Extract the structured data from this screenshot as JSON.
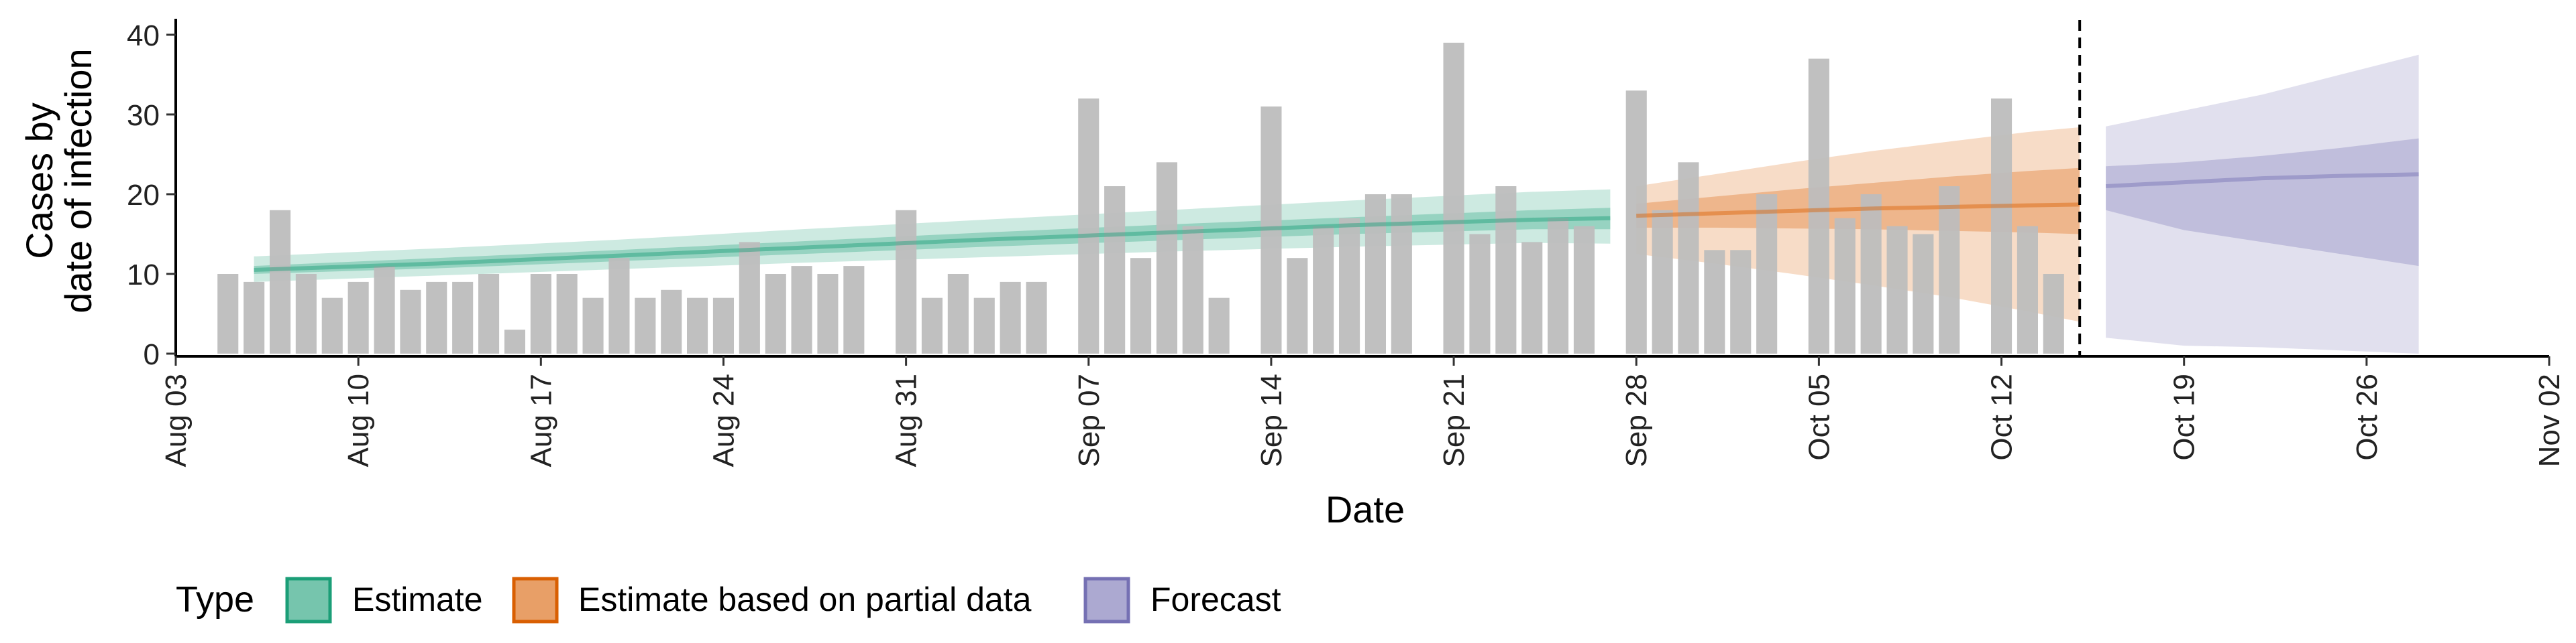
{
  "chart_data": {
    "type": "bar",
    "xlabel": "Date",
    "ylabel_lines": [
      "Cases by",
      "date of infection"
    ],
    "ylim": [
      0,
      41
    ],
    "y_ticks": [
      0,
      10,
      20,
      30,
      40
    ],
    "x_range": [
      "2020-08-03",
      "2020-11-02"
    ],
    "x_ticks": [
      {
        "date": "2020-08-03",
        "label": "Aug 03"
      },
      {
        "date": "2020-08-10",
        "label": "Aug 10"
      },
      {
        "date": "2020-08-17",
        "label": "Aug 17"
      },
      {
        "date": "2020-08-24",
        "label": "Aug 24"
      },
      {
        "date": "2020-08-31",
        "label": "Aug 31"
      },
      {
        "date": "2020-09-07",
        "label": "Sep 07"
      },
      {
        "date": "2020-09-14",
        "label": "Sep 14"
      },
      {
        "date": "2020-09-21",
        "label": "Sep 21"
      },
      {
        "date": "2020-09-28",
        "label": "Sep 28"
      },
      {
        "date": "2020-10-05",
        "label": "Oct 05"
      },
      {
        "date": "2020-10-12",
        "label": "Oct 12"
      },
      {
        "date": "2020-10-19",
        "label": "Oct 19"
      },
      {
        "date": "2020-10-26",
        "label": "Oct 26"
      },
      {
        "date": "2020-11-02",
        "label": "Nov 02"
      }
    ],
    "bars": {
      "start_date": "2020-08-05",
      "values": [
        10,
        9,
        18,
        10,
        7,
        9,
        11,
        8,
        9,
        9,
        10,
        3,
        10,
        10,
        7,
        12,
        7,
        8,
        7,
        7,
        14,
        10,
        11,
        10,
        11,
        null,
        18,
        7,
        10,
        7,
        9,
        9,
        null,
        32,
        21,
        12,
        24,
        16,
        7,
        null,
        31,
        12,
        16,
        17,
        20,
        20,
        null,
        39,
        15,
        21,
        14,
        17,
        16,
        null,
        33,
        18,
        24,
        13,
        13,
        20,
        null,
        37,
        17,
        20,
        16,
        15,
        21,
        null,
        32,
        16,
        10
      ]
    },
    "vline_date": "2020-10-15",
    "series": [
      {
        "name": "Estimate",
        "color": "#1b9e77",
        "x": [
          "2020-08-06",
          "2020-08-13",
          "2020-08-20",
          "2020-08-27",
          "2020-09-03",
          "2020-09-10",
          "2020-09-17",
          "2020-09-24",
          "2020-09-27"
        ],
        "median": [
          10.5,
          11.3,
          12.3,
          13.3,
          14.3,
          15.2,
          16.1,
          16.8,
          17.0
        ],
        "inner_low": [
          10.0,
          10.7,
          11.6,
          12.5,
          13.4,
          14.2,
          15.0,
          15.6,
          15.6
        ],
        "inner_high": [
          11.0,
          12.0,
          13.0,
          14.1,
          15.2,
          16.2,
          17.1,
          18.0,
          18.3
        ],
        "outer_low": [
          9.0,
          9.8,
          10.6,
          11.4,
          12.1,
          12.8,
          13.4,
          13.9,
          13.8
        ],
        "outer_high": [
          12.2,
          13.2,
          14.3,
          15.6,
          16.8,
          18.0,
          19.2,
          20.3,
          20.6
        ]
      },
      {
        "name": "Estimate based on partial data",
        "color": "#d95f02",
        "x": [
          "2020-09-28",
          "2020-10-01",
          "2020-10-04",
          "2020-10-07",
          "2020-10-10",
          "2020-10-13",
          "2020-10-15"
        ],
        "median": [
          17.3,
          17.6,
          17.9,
          18.2,
          18.4,
          18.6,
          18.7
        ],
        "inner_low": [
          15.8,
          15.8,
          15.7,
          15.6,
          15.4,
          15.2,
          15.0
        ],
        "inner_high": [
          18.8,
          19.7,
          20.6,
          21.4,
          22.2,
          22.9,
          23.3
        ],
        "outer_low": [
          12.5,
          11.3,
          10.0,
          8.6,
          7.1,
          5.3,
          4.0
        ],
        "outer_high": [
          21.0,
          22.5,
          24.0,
          25.4,
          26.6,
          27.8,
          28.4
        ]
      },
      {
        "name": "Forecast",
        "color": "#7570b3",
        "x": [
          "2020-10-16",
          "2020-10-19",
          "2020-10-22",
          "2020-10-25",
          "2020-10-28"
        ],
        "median": [
          21.0,
          21.5,
          22.0,
          22.3,
          22.5
        ],
        "inner_low": [
          18.0,
          15.5,
          14.0,
          12.5,
          11.0
        ],
        "inner_high": [
          23.5,
          24.0,
          24.8,
          25.8,
          27.0
        ],
        "outer_low": [
          2.0,
          1.0,
          0.8,
          0.4,
          0.0
        ],
        "outer_high": [
          28.5,
          30.5,
          32.5,
          35.0,
          37.5
        ]
      }
    ],
    "legend": {
      "title": "Type",
      "position": "bottom",
      "items": [
        {
          "label": "Estimate",
          "color": "#1b9e77"
        },
        {
          "label": "Estimate based on partial data",
          "color": "#d95f02"
        },
        {
          "label": "Forecast",
          "color": "#7570b3"
        }
      ]
    },
    "bar_color": "#bdbdbd",
    "grid": false
  }
}
